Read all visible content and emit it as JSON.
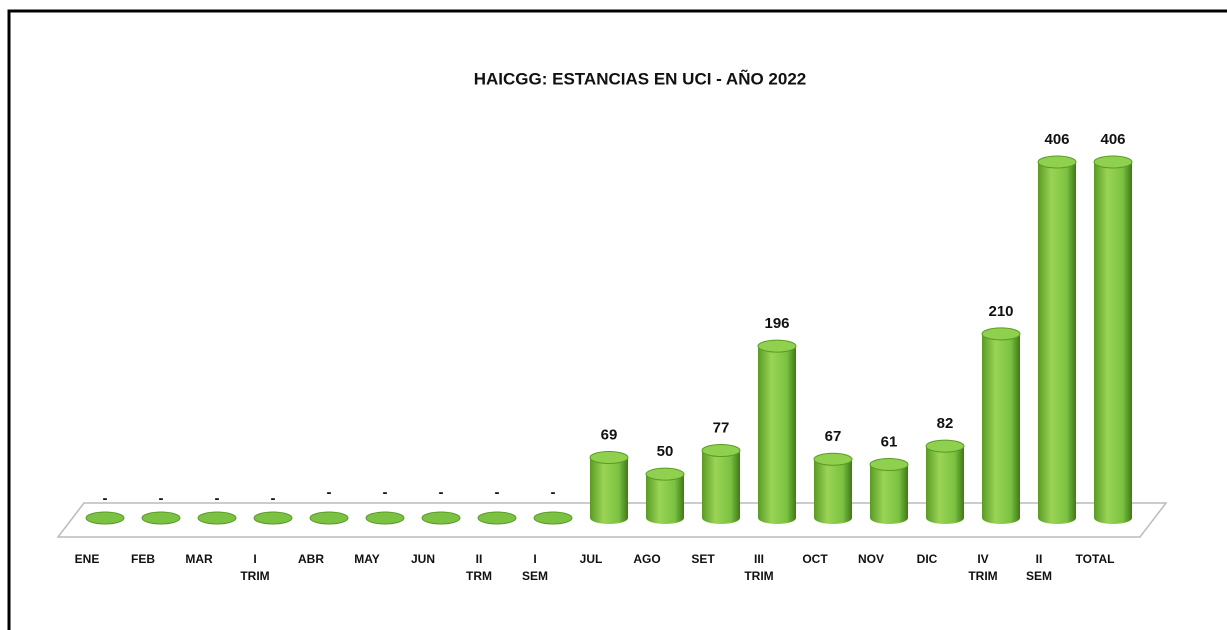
{
  "chart_data": {
    "type": "bar",
    "title": "HAICGG: ESTANCIAS EN UCI - AÑO 2022",
    "categories": [
      "ENE",
      "FEB",
      "MAR",
      "I TRIM",
      "ABR",
      "MAY",
      "JUN",
      "II TRM",
      "I SEM",
      "JUL",
      "AGO",
      "SET",
      "III TRIM",
      "OCT",
      "NOV",
      "DIC",
      "IV TRIM",
      "II SEM",
      "TOTAL"
    ],
    "values": [
      0,
      0,
      0,
      0,
      0,
      0,
      0,
      0,
      0,
      69,
      50,
      77,
      196,
      67,
      61,
      82,
      210,
      406,
      406
    ],
    "value_labels": [
      "-",
      "-",
      "-",
      "-",
      "-",
      "-",
      "-",
      "-",
      "-",
      "69",
      "50",
      "77",
      "196",
      "67",
      "61",
      "82",
      "210",
      "406",
      "406"
    ],
    "color": "#7cc242"
  }
}
